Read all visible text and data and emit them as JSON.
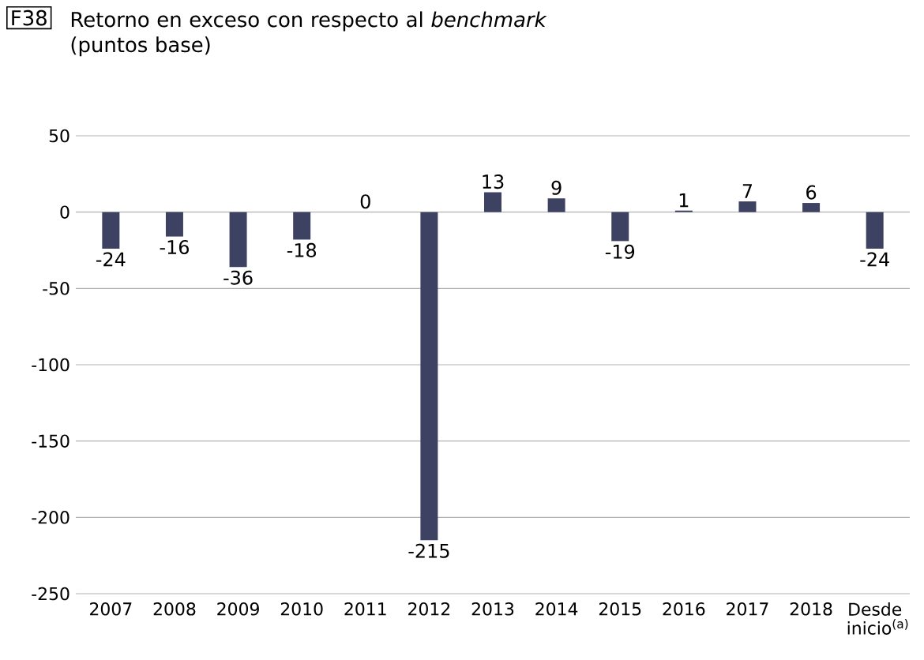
{
  "chart_data": {
    "type": "bar",
    "title": "Retorno en exceso con respecto al *benchmark* (puntos base)",
    "annotations": [
      "F38"
    ],
    "categories": [
      "2007",
      "2008",
      "2009",
      "2010",
      "2011",
      "2012",
      "2013",
      "2014",
      "2015",
      "2016",
      "2017",
      "2018",
      "Desde inicio$^{(a)}$"
    ],
    "values": [
      -24,
      -16,
      -36,
      -18,
      0,
      -215,
      13,
      9,
      -19,
      1,
      7,
      6,
      -24
    ],
    "color": "#3d4263",
    "ylim": [
      -250,
      50
    ],
    "yticks": [
      -250,
      -200,
      -150,
      -100,
      -50,
      0,
      50
    ],
    "grid": "y",
    "data_labels": true
  }
}
